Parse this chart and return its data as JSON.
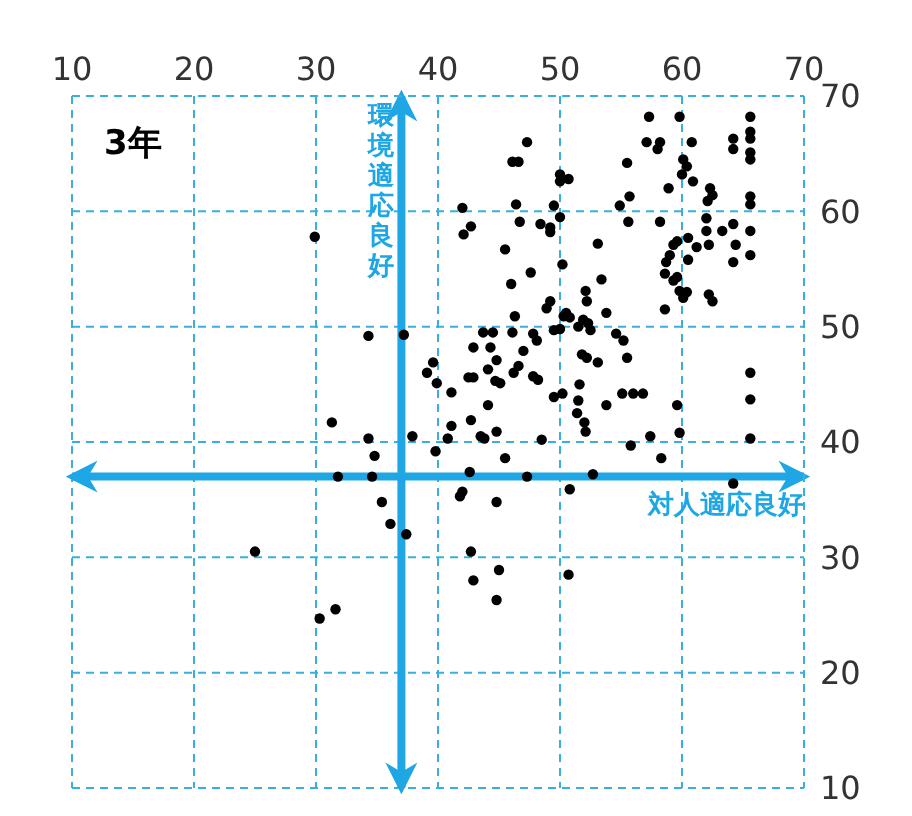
{
  "chart_data": {
    "type": "scatter",
    "title": "3年",
    "x": [
      29.9,
      34.3,
      37.2,
      39.1,
      31.3,
      34.3,
      34.8,
      37.9,
      31.8,
      34.6,
      35.4,
      36.1,
      37.4,
      25,
      31.6,
      30.3,
      39.8,
      40.8,
      41.1,
      42.6,
      42,
      41.8,
      42.7,
      42.9,
      45,
      44.8,
      44.8,
      45.5,
      47.3,
      48.5,
      43.5,
      43.8,
      44.8,
      42.7,
      44.1,
      50.8,
      50.7,
      52.7,
      53.8,
      51.4,
      52,
      52.1,
      49.5,
      50.2,
      55.8,
      57.4,
      58.3,
      59.8,
      64.2,
      65.6,
      65.6,
      57.3,
      59.8,
      65.6,
      57.1,
      58.2,
      58,
      60.8,
      64.2,
      64.2,
      65.6,
      65.6,
      65.6,
      65.6,
      47.3,
      46.1,
      46.6,
      55.5,
      60.1,
      60.4,
      60,
      60.9,
      62.3,
      62.5,
      62.1,
      50,
      50,
      50.7,
      58.9,
      55.7,
      65.6,
      65.6,
      42,
      46.4,
      49.5,
      50,
      54.9,
      42.7,
      42.1,
      46.7,
      48.4,
      49.2,
      49.2,
      55.6,
      58.2,
      62,
      62,
      63.3,
      64.2,
      64.4,
      65.6,
      60.5,
      59.6,
      59.3,
      59,
      61.2,
      62.2,
      65.6,
      58.7,
      58.6,
      60.5,
      59.6,
      64.2,
      53.1,
      45.5,
      50.2,
      47.6,
      46,
      53.4,
      59.3,
      59.8,
      60.4,
      60.1,
      62.2,
      62.5,
      52.1,
      52.2,
      49.2,
      48.9,
      46.3,
      50.5,
      50.8,
      51.9,
      52.3,
      53.8,
      58.6,
      43.7,
      44.5,
      46.1,
      47.8,
      48.1,
      49.5,
      50,
      50.3,
      51.5,
      52.5,
      54.6,
      55.2,
      44.3,
      44.8,
      42.9,
      47,
      55.5,
      51.8,
      52.2,
      53.1,
      39.6,
      39.9,
      42.5,
      42.9,
      44.1,
      44.7,
      45.1,
      46.2,
      46.6,
      47.8,
      48.2,
      41.1,
      51.6,
      51.5,
      55.1,
      56,
      56.8,
      59.6,
      65.6
    ],
    "values": [
      57.8,
      49.2,
      49.3,
      46,
      41.7,
      40.3,
      38.8,
      40.5,
      37,
      37,
      34.8,
      32.9,
      32,
      30.5,
      25.5,
      24.7,
      39.2,
      40.3,
      41.4,
      37.4,
      35.7,
      35.3,
      30.5,
      28,
      28.9,
      26.3,
      34.8,
      38.6,
      37,
      40.2,
      40.5,
      40.3,
      40.9,
      41.9,
      43.2,
      35.9,
      28.5,
      37.2,
      43.2,
      42.5,
      41.7,
      40.9,
      43.9,
      44.2,
      39.7,
      40.5,
      38.6,
      40.8,
      36.4,
      40.3,
      43.7,
      68.2,
      68.2,
      68.2,
      66,
      66,
      65.4,
      66,
      66.3,
      65.4,
      66.9,
      66.3,
      65.1,
      64.5,
      66,
      64.3,
      64.3,
      64.2,
      64.5,
      63.9,
      63.2,
      62.6,
      62,
      61.4,
      60.9,
      63.2,
      62.6,
      62.8,
      62,
      61.3,
      61.3,
      60.6,
      60.3,
      60.6,
      60.5,
      59.5,
      60.5,
      58.7,
      58,
      59.1,
      58.9,
      58.6,
      58.2,
      59.1,
      59.1,
      59.4,
      58.3,
      58.3,
      58.9,
      57.1,
      58.3,
      57.7,
      57.4,
      57.1,
      56.2,
      56.9,
      57.1,
      56.2,
      55.6,
      54.6,
      55.8,
      54.3,
      55.6,
      57.2,
      56.7,
      55.4,
      54.7,
      53.7,
      54.1,
      54,
      53.1,
      53,
      52.5,
      52.8,
      52.2,
      53.1,
      52.2,
      52.2,
      51.6,
      50.9,
      51.2,
      50.8,
      50.6,
      50.3,
      51.2,
      51.5,
      49.5,
      49.5,
      49.5,
      49.4,
      48.8,
      49.7,
      49.8,
      50.9,
      50,
      49.7,
      49.4,
      48.8,
      48.2,
      47.1,
      48.2,
      47.9,
      47.3,
      47.6,
      47.3,
      46.9,
      46.9,
      45.1,
      45.6,
      45.6,
      46.3,
      45.3,
      45.1,
      46,
      46.6,
      45.7,
      45.4,
      44.3,
      45,
      43.6,
      44.2,
      44.2,
      44.2,
      43.2,
      46
    ],
    "color": "#000000",
    "marker": "circle",
    "xlim": [
      10,
      70
    ],
    "xticks": [
      10,
      20,
      30,
      40,
      50,
      60,
      70
    ],
    "ylim": [
      10,
      70
    ],
    "yticks": [
      10,
      20,
      30,
      40,
      50,
      60,
      70
    ],
    "grid": true,
    "ref_lines": [
      {
        "axis": "x",
        "value": 37,
        "label": "環境適応良好",
        "color": "#1ea7e4"
      },
      {
        "axis": "y",
        "value": 37,
        "label": "対人適応良好",
        "color": "#1ea7e4"
      }
    ]
  }
}
